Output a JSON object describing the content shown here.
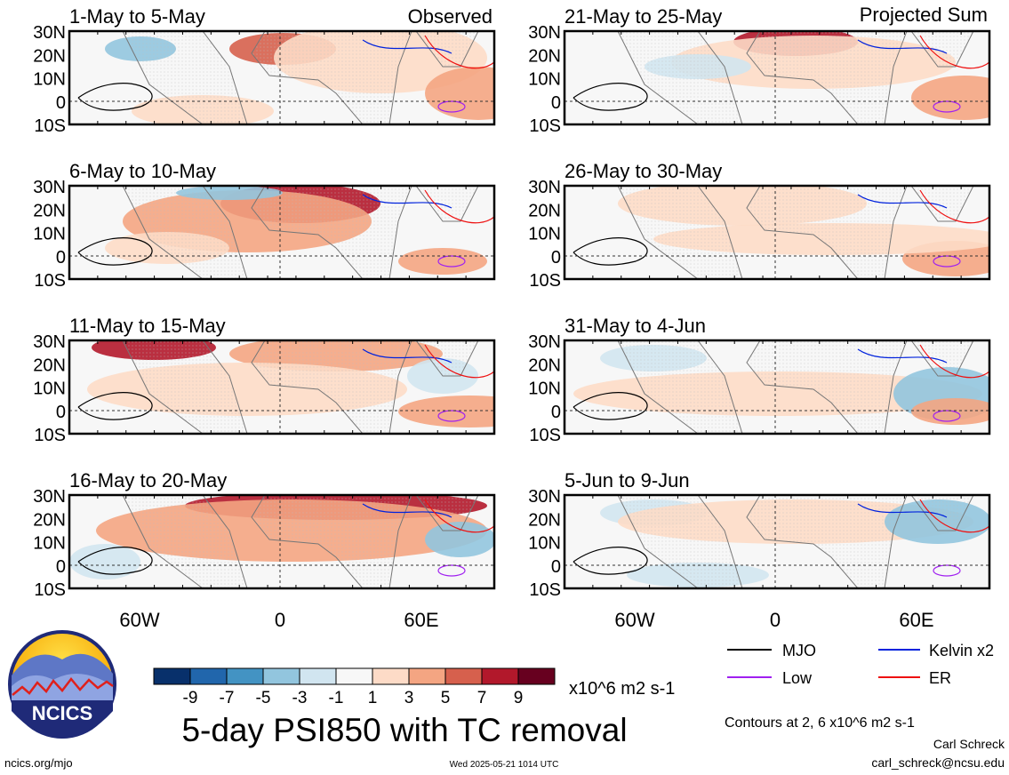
{
  "left_column_label": "Observed",
  "right_column_label": "Projected Sum",
  "lat_labels": [
    "30N",
    "20N",
    "10N",
    "0",
    "10S"
  ],
  "lon_labels": [
    "60W",
    "0",
    "60E"
  ],
  "panels": [
    {
      "title": "1-May to 5-May",
      "col": "left",
      "row": 0
    },
    {
      "title": "6-May to 10-May",
      "col": "left",
      "row": 1
    },
    {
      "title": "11-May to 15-May",
      "col": "left",
      "row": 2
    },
    {
      "title": "16-May to 20-May",
      "col": "left",
      "row": 3
    },
    {
      "title": "21-May to 25-May",
      "col": "right",
      "row": 0
    },
    {
      "title": "26-May to 30-May",
      "col": "right",
      "row": 1
    },
    {
      "title": "31-May to 4-Jun",
      "col": "right",
      "row": 2
    },
    {
      "title": "5-Jun to 9-Jun",
      "col": "right",
      "row": 3
    }
  ],
  "colorbar": {
    "tick_labels": [
      "-9",
      "-7",
      "-5",
      "-3",
      "-1",
      "1",
      "3",
      "5",
      "7",
      "9"
    ],
    "colors": [
      "#08306b",
      "#2166ac",
      "#4393c3",
      "#92c5de",
      "#d1e5f0",
      "#f7f7f7",
      "#fddbc7",
      "#f4a582",
      "#d6604d",
      "#b2182b",
      "#67001f"
    ],
    "units": "x10^6 m2 s-1"
  },
  "legend": {
    "items": [
      {
        "label": "MJO",
        "color": "#000000"
      },
      {
        "label": "Kelvin x2",
        "color": "#0022dd"
      },
      {
        "label": "Low",
        "color": "#a020f0"
      },
      {
        "label": "ER",
        "color": "#ee1111"
      }
    ]
  },
  "logo_text": "NCICS",
  "main_title": "5-day PSI850 with TC removal",
  "contours_note": "Contours at 2, 6 x10^6 m2 s-1",
  "author": "Carl Schreck",
  "email": "carl_schreck@ncsu.edu",
  "url": "ncics.org/mjo",
  "timestamp": "Wed 2025-05-21 1014 UTC"
}
